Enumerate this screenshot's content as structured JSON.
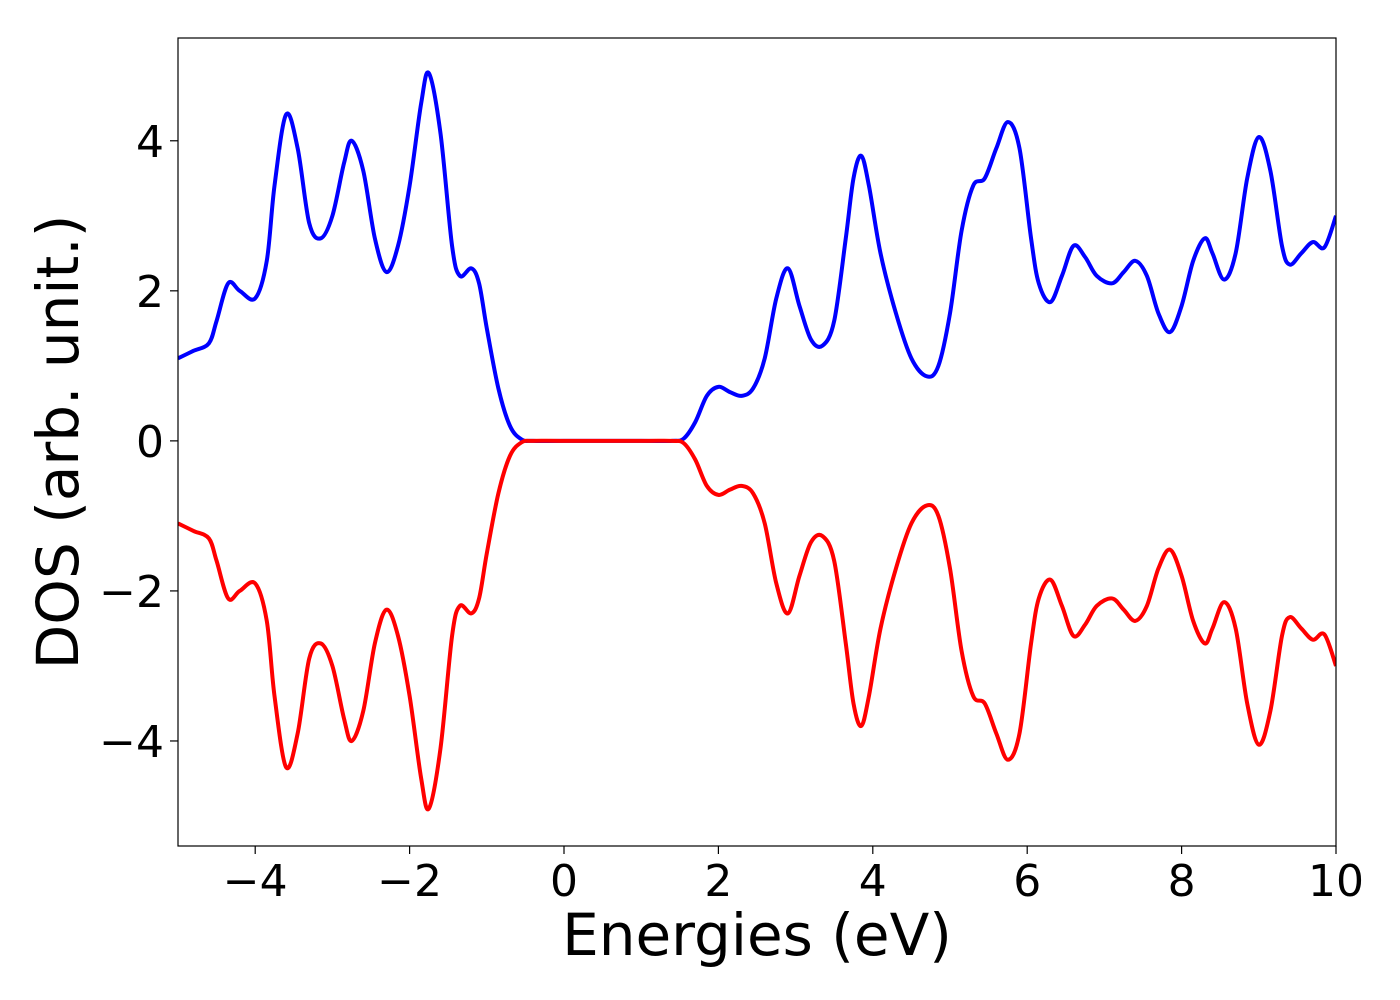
{
  "chart_data": {
    "type": "line",
    "xlabel": "Energies (eV)",
    "ylabel": "DOS (arb. unit.)",
    "x": [
      -5,
      -4.8,
      -4.6,
      -4.5,
      -4.35,
      -4.2,
      -4.0,
      -3.85,
      -3.75,
      -3.6,
      -3.45,
      -3.3,
      -3.15,
      -3.0,
      -2.85,
      -2.75,
      -2.6,
      -2.45,
      -2.3,
      -2.15,
      -2.0,
      -1.85,
      -1.75,
      -1.6,
      -1.45,
      -1.35,
      -1.2,
      -1.1,
      -1.0,
      -0.85,
      -0.7,
      -0.55,
      -0.4,
      0,
      1.0,
      1.4,
      1.55,
      1.7,
      1.85,
      2.0,
      2.15,
      2.3,
      2.45,
      2.6,
      2.75,
      2.9,
      3.05,
      3.2,
      3.35,
      3.5,
      3.65,
      3.75,
      3.85,
      3.95,
      4.1,
      4.3,
      4.5,
      4.7,
      4.85,
      5.0,
      5.15,
      5.3,
      5.45,
      5.6,
      5.75,
      5.9,
      6.05,
      6.15,
      6.3,
      6.45,
      6.6,
      6.75,
      6.9,
      7.1,
      7.25,
      7.4,
      7.55,
      7.7,
      7.85,
      8.0,
      8.15,
      8.3,
      8.4,
      8.55,
      8.7,
      8.85,
      9.0,
      9.15,
      9.3,
      9.4,
      9.55,
      9.7,
      9.85,
      10.0
    ],
    "series": [
      {
        "color": "#0000ff",
        "values": [
          1.1,
          1.2,
          1.3,
          1.6,
          2.1,
          2.0,
          1.9,
          2.4,
          3.4,
          4.35,
          3.9,
          2.9,
          2.7,
          3.0,
          3.7,
          4.0,
          3.6,
          2.7,
          2.25,
          2.6,
          3.4,
          4.5,
          4.9,
          4.1,
          2.6,
          2.2,
          2.3,
          2.1,
          1.5,
          0.7,
          0.2,
          0.02,
          0,
          0,
          0,
          0,
          0.03,
          0.25,
          0.6,
          0.72,
          0.65,
          0.6,
          0.7,
          1.1,
          1.9,
          2.3,
          1.8,
          1.35,
          1.27,
          1.6,
          2.7,
          3.5,
          3.8,
          3.4,
          2.5,
          1.7,
          1.1,
          0.86,
          1.0,
          1.7,
          2.8,
          3.4,
          3.5,
          3.9,
          4.25,
          3.9,
          2.7,
          2.1,
          1.85,
          2.2,
          2.6,
          2.45,
          2.2,
          2.1,
          2.25,
          2.4,
          2.2,
          1.7,
          1.45,
          1.8,
          2.4,
          2.7,
          2.5,
          2.15,
          2.5,
          3.5,
          4.05,
          3.6,
          2.6,
          2.35,
          2.5,
          2.65,
          2.58,
          3.0
        ]
      },
      {
        "color": "#ff0000",
        "values": [
          -1.1,
          -1.2,
          -1.3,
          -1.6,
          -2.1,
          -2.0,
          -1.9,
          -2.4,
          -3.4,
          -4.35,
          -3.9,
          -2.9,
          -2.7,
          -3.0,
          -3.7,
          -4.0,
          -3.6,
          -2.7,
          -2.25,
          -2.6,
          -3.4,
          -4.5,
          -4.9,
          -4.1,
          -2.6,
          -2.2,
          -2.3,
          -2.1,
          -1.5,
          -0.7,
          -0.2,
          -0.02,
          0,
          0,
          0,
          0,
          -0.03,
          -0.25,
          -0.6,
          -0.72,
          -0.65,
          -0.6,
          -0.7,
          -1.1,
          -1.9,
          -2.3,
          -1.8,
          -1.35,
          -1.27,
          -1.6,
          -2.7,
          -3.5,
          -3.8,
          -3.4,
          -2.5,
          -1.7,
          -1.1,
          -0.86,
          -1.0,
          -1.7,
          -2.8,
          -3.4,
          -3.5,
          -3.9,
          -4.25,
          -3.9,
          -2.7,
          -2.1,
          -1.85,
          -2.2,
          -2.6,
          -2.45,
          -2.2,
          -2.1,
          -2.25,
          -2.4,
          -2.2,
          -1.7,
          -1.45,
          -1.8,
          -2.4,
          -2.7,
          -2.5,
          -2.15,
          -2.5,
          -3.5,
          -4.05,
          -3.6,
          -2.6,
          -2.35,
          -2.5,
          -2.65,
          -2.58,
          -3.0
        ]
      }
    ],
    "xlim": [
      -5,
      10
    ],
    "xticks": [
      {
        "value": -4,
        "label": "−4"
      },
      {
        "value": -2,
        "label": "−2"
      },
      0,
      2,
      4,
      6,
      8,
      10
    ],
    "ylim": [
      -5.4,
      5.37
    ],
    "yticks": [
      {
        "value": -4,
        "label": "−4"
      },
      {
        "value": -2,
        "label": "−2"
      },
      0,
      2,
      4
    ]
  }
}
